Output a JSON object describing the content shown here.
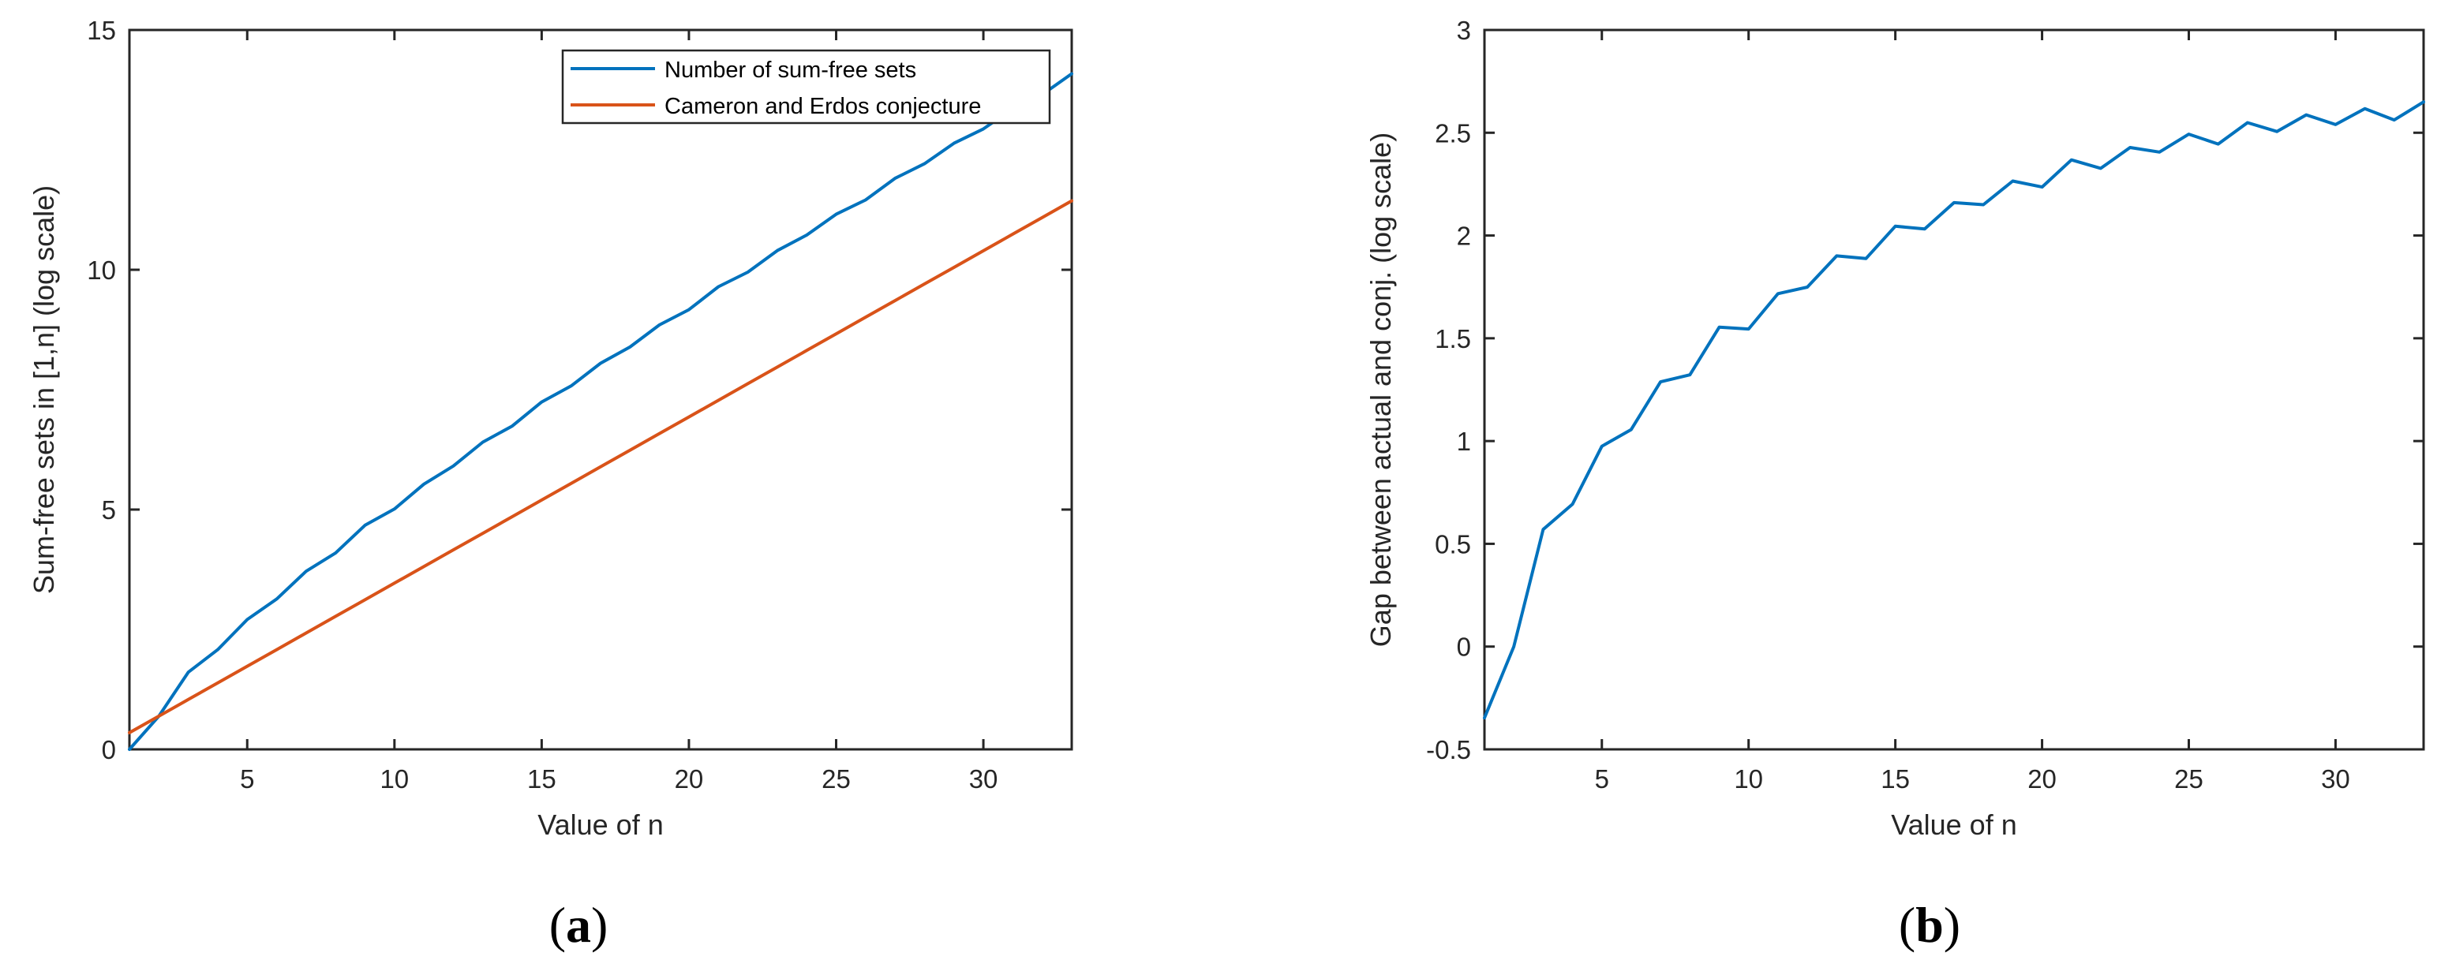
{
  "page": {
    "background": "#ffffff"
  },
  "colors": {
    "axis": "#262626",
    "tick_label": "#262626",
    "axis_label": "#262626",
    "legend_text": "#000000",
    "series_blue": "#0072BD",
    "series_orange": "#D95319"
  },
  "captions": {
    "a": {
      "prefix": "(",
      "letter": "a",
      "suffix": ")"
    },
    "b": {
      "prefix": "(",
      "letter": "b",
      "suffix": ")"
    }
  },
  "chart_data": [
    {
      "type": "line",
      "title": "",
      "xlabel": "Value of n",
      "ylabel": "Sum-free sets in [1,n] (log scale)",
      "xlim": [
        1,
        33
      ],
      "ylim": [
        0,
        15
      ],
      "xticks": [
        5,
        10,
        15,
        20,
        25,
        30
      ],
      "yticks": [
        0,
        5,
        10,
        15
      ],
      "grid": false,
      "legend_position": "northeast-inside",
      "x": [
        1,
        2,
        3,
        4,
        5,
        6,
        7,
        8,
        9,
        10,
        11,
        12,
        13,
        14,
        15,
        16,
        17,
        18,
        19,
        20,
        21,
        22,
        23,
        24,
        25,
        26,
        27,
        28,
        29,
        30,
        31,
        32,
        33
      ],
      "series": [
        {
          "name": "Number of sum-free sets",
          "color": "#0072BD",
          "values": [
            0.0,
            0.693,
            1.609,
            2.079,
            2.708,
            3.135,
            3.714,
            4.094,
            4.673,
            5.011,
            5.529,
            5.908,
            6.407,
            6.741,
            7.244,
            7.577,
            8.051,
            8.389,
            8.85,
            9.168,
            9.646,
            9.951,
            10.399,
            10.724,
            11.158,
            11.456,
            11.907,
            12.21,
            12.638,
            12.937,
            13.36,
            13.653,
            14.087
          ]
        },
        {
          "name": "Cameron and Erdos conjecture",
          "color": "#D95319",
          "values": [
            0.347,
            0.693,
            1.04,
            1.386,
            1.733,
            2.079,
            2.426,
            2.773,
            3.119,
            3.466,
            3.812,
            4.159,
            4.505,
            4.852,
            5.199,
            5.545,
            5.892,
            6.238,
            6.585,
            6.931,
            7.278,
            7.625,
            7.971,
            8.318,
            8.664,
            9.011,
            9.357,
            9.704,
            10.05,
            10.397,
            10.744,
            11.09,
            11.437
          ]
        }
      ]
    },
    {
      "type": "line",
      "title": "",
      "xlabel": "Value of n",
      "ylabel": "Gap between actual and conj. (log scale)",
      "xlim": [
        1,
        33
      ],
      "ylim": [
        -0.5,
        3
      ],
      "xticks": [
        5,
        10,
        15,
        20,
        25,
        30
      ],
      "yticks": [
        -0.5,
        0,
        0.5,
        1,
        1.5,
        2,
        2.5,
        3
      ],
      "grid": false,
      "legend_position": null,
      "x": [
        1,
        2,
        3,
        4,
        5,
        6,
        7,
        8,
        9,
        10,
        11,
        12,
        13,
        14,
        15,
        16,
        17,
        18,
        19,
        20,
        21,
        22,
        23,
        24,
        25,
        26,
        27,
        28,
        29,
        30,
        31,
        32,
        33
      ],
      "series": [
        {
          "name": "Gap between actual and conjecture",
          "color": "#0072BD",
          "values": [
            -0.347,
            0.0,
            0.57,
            0.693,
            0.975,
            1.056,
            1.288,
            1.322,
            1.554,
            1.545,
            1.717,
            1.749,
            1.901,
            1.888,
            2.045,
            2.032,
            2.16,
            2.15,
            2.265,
            2.236,
            2.368,
            2.327,
            2.428,
            2.406,
            2.493,
            2.445,
            2.549,
            2.506,
            2.587,
            2.54,
            2.617,
            2.562,
            2.65
          ]
        }
      ]
    }
  ]
}
